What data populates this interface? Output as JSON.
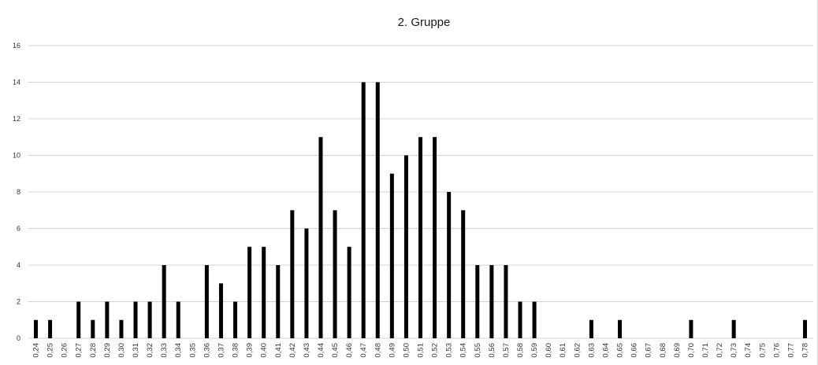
{
  "chart_data": {
    "type": "bar",
    "title": "2. Gruppe",
    "xlabel": "",
    "ylabel": "",
    "ylim": [
      0,
      16
    ],
    "yticks": [
      "0",
      "2",
      "4",
      "6",
      "8",
      "10",
      "12",
      "14",
      "16"
    ],
    "grid": true,
    "legend": "none",
    "bar_color": "#000000",
    "grid_color": "#d0d0d0",
    "categories": [
      "0,24",
      "0,25",
      "0,26",
      "0,27",
      "0,28",
      "0,29",
      "0,30",
      "0,31",
      "0,32",
      "0,33",
      "0,34",
      "0,35",
      "0,36",
      "0,37",
      "0,38",
      "0,39",
      "0,40",
      "0,41",
      "0,42",
      "0,43",
      "0,44",
      "0,45",
      "0,46",
      "0,47",
      "0,48",
      "0,49",
      "0,50",
      "0,51",
      "0,52",
      "0,53",
      "0,54",
      "0,55",
      "0,56",
      "0,57",
      "0,58",
      "0,59",
      "0,60",
      "0,61",
      "0,62",
      "0,63",
      "0,64",
      "0,65",
      "0,66",
      "0,67",
      "0,68",
      "0,69",
      "0,70",
      "0,71",
      "0,72",
      "0,73",
      "0,74",
      "0,75",
      "0,76",
      "0,77",
      "0,78"
    ],
    "values": [
      1,
      1,
      0,
      2,
      1,
      2,
      1,
      2,
      2,
      4,
      2,
      0,
      4,
      3,
      2,
      5,
      5,
      4,
      7,
      6,
      11,
      7,
      5,
      14,
      14,
      9,
      10,
      11,
      11,
      8,
      7,
      4,
      4,
      4,
      2,
      2,
      0,
      0,
      0,
      1,
      0,
      1,
      0,
      0,
      0,
      0,
      1,
      0,
      0,
      1,
      0,
      0,
      0,
      0,
      1
    ]
  }
}
